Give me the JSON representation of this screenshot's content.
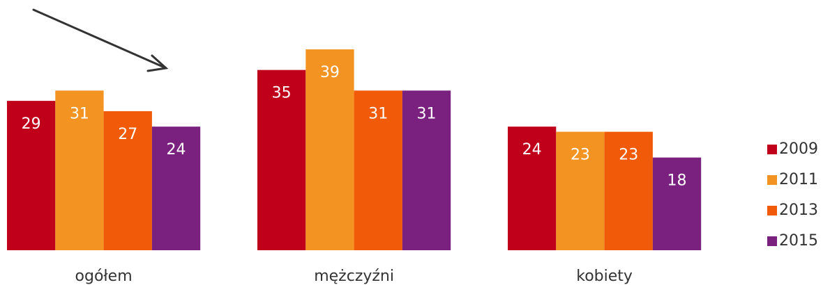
{
  "chart_data": {
    "type": "bar",
    "categories": [
      "ogółem",
      "mężczyźni",
      "kobiety"
    ],
    "series": [
      {
        "name": "2009",
        "color": "#c0001a",
        "values": [
          29,
          35,
          24
        ]
      },
      {
        "name": "2011",
        "color": "#f39322",
        "values": [
          31,
          39,
          23
        ]
      },
      {
        "name": "2013",
        "color": "#f05a08",
        "values": [
          27,
          31,
          23
        ]
      },
      {
        "name": "2015",
        "color": "#7a2180",
        "values": [
          24,
          31,
          18
        ]
      }
    ],
    "legend": "right"
  }
}
